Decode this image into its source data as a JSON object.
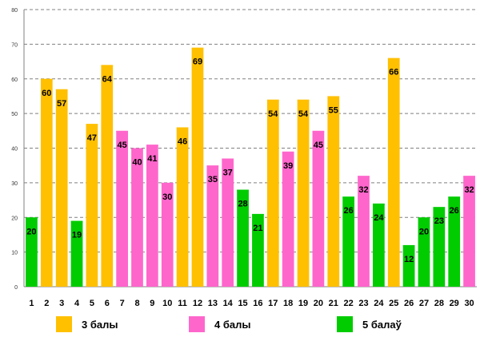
{
  "chart_data": {
    "type": "bar",
    "title": "",
    "xlabel": "",
    "ylabel": "",
    "ylim": [
      0,
      80
    ],
    "yticks": [
      0,
      10,
      20,
      30,
      40,
      50,
      60,
      70,
      80
    ],
    "grid": true,
    "legend_position": "bottom",
    "categories": [
      "1",
      "2",
      "3",
      "4",
      "5",
      "6",
      "7",
      "8",
      "9",
      "10",
      "11",
      "12",
      "13",
      "14",
      "15",
      "16",
      "17",
      "18",
      "19",
      "20",
      "21",
      "22",
      "23",
      "24",
      "25",
      "26",
      "27",
      "28",
      "29",
      "30"
    ],
    "values": [
      20,
      60,
      57,
      19,
      47,
      64,
      45,
      40,
      41,
      30,
      46,
      69,
      35,
      37,
      28,
      21,
      54,
      39,
      54,
      45,
      55,
      26,
      32,
      24,
      66,
      12,
      20,
      23,
      26,
      32
    ],
    "groups": [
      "g5",
      "g3",
      "g3",
      "g5",
      "g3",
      "g3",
      "g4",
      "g4",
      "g4",
      "g4",
      "g3",
      "g3",
      "g4",
      "g4",
      "g5",
      "g5",
      "g3",
      "g4",
      "g3",
      "g4",
      "g3",
      "g5",
      "g4",
      "g5",
      "g3",
      "g5",
      "g5",
      "g5",
      "g5",
      "g4"
    ],
    "series": [
      {
        "key": "g3",
        "name": "3 балы",
        "color": "#FFC000"
      },
      {
        "key": "g4",
        "name": "4 балы",
        "color": "#FF66CC"
      },
      {
        "key": "g5",
        "name": "5 балаў",
        "color": "#00CC00"
      }
    ]
  }
}
